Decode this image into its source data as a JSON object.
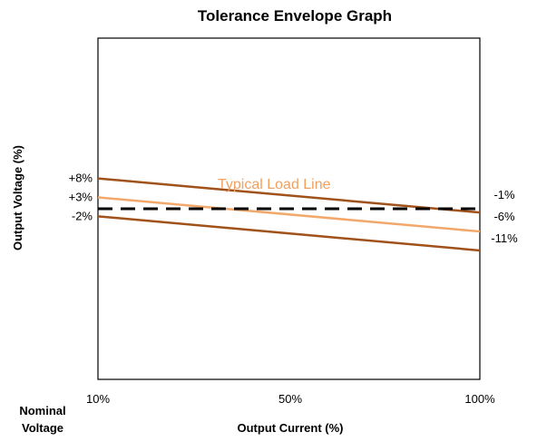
{
  "chart_data": {
    "type": "line",
    "title": "Tolerance Envelope Graph",
    "xlabel": "Output Current (%)",
    "ylabel": "Output Voltage (%)",
    "x_corner_label": [
      "Nominal",
      "Voltage"
    ],
    "x_ticks": [
      "10%",
      "50%",
      "100%"
    ],
    "xlim": [
      10,
      100
    ],
    "ylim": [
      -45,
      45
    ],
    "grid": false,
    "legend": "none",
    "annotation": "Typical Load Line",
    "series": [
      {
        "key": "upper",
        "x": [
          10,
          100
        ],
        "y": [
          8,
          -1
        ],
        "start_label": "+8%",
        "end_label": "",
        "color": "#a0521a",
        "dash": false
      },
      {
        "key": "typical",
        "x": [
          10,
          100
        ],
        "y": [
          3,
          -6
        ],
        "start_label": "+3%",
        "end_label": "-6%",
        "color": "#f2a86a",
        "dash": false
      },
      {
        "key": "lower",
        "x": [
          10,
          100
        ],
        "y": [
          -2,
          -11
        ],
        "start_label": "-2%",
        "end_label": "-11%",
        "color": "#a0521a",
        "dash": false
      },
      {
        "key": "nominal",
        "x": [
          10,
          100
        ],
        "y": [
          0,
          0
        ],
        "start_label": "",
        "end_label": "-1%",
        "color": "#000000",
        "dash": true
      }
    ]
  }
}
